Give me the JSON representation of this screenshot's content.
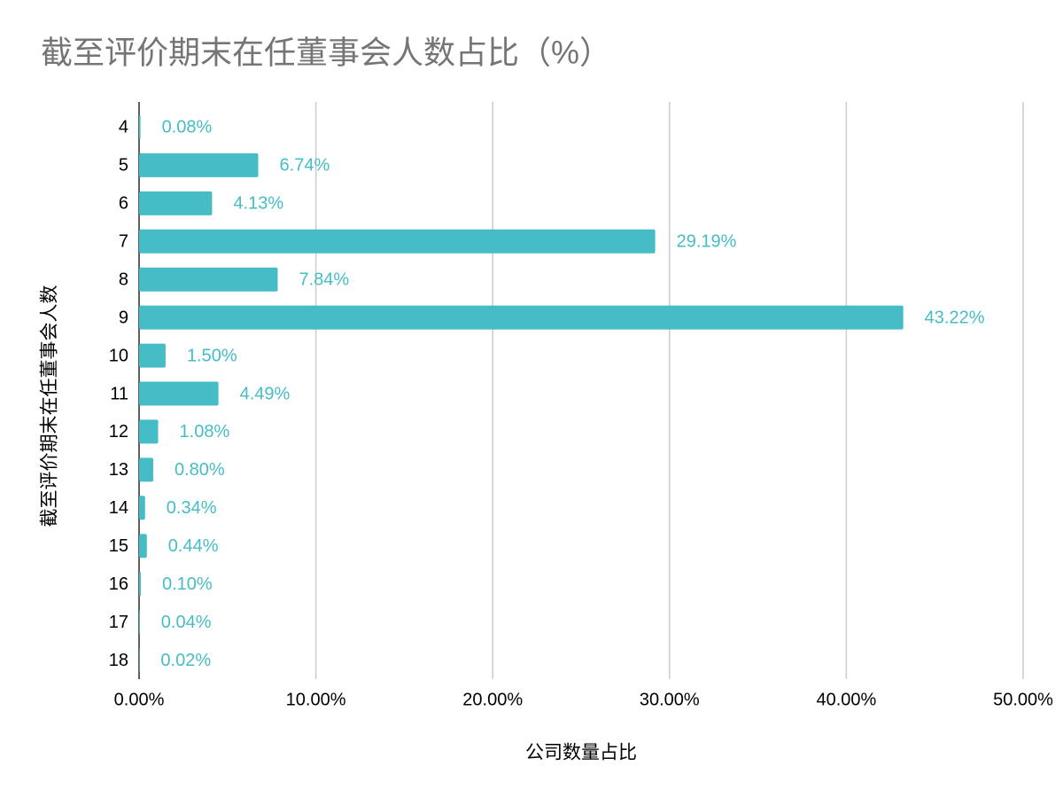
{
  "chart_data": {
    "type": "bar",
    "orientation": "horizontal",
    "title": "截至评价期末在任董事会人数占比（%）",
    "x_label": "公司数量占比",
    "y_label": "截至评价期末在任董事会人数",
    "categories": [
      "4",
      "5",
      "6",
      "7",
      "8",
      "9",
      "10",
      "11",
      "12",
      "13",
      "14",
      "15",
      "16",
      "17",
      "18"
    ],
    "values": [
      0.08,
      6.74,
      4.13,
      29.19,
      7.84,
      43.22,
      1.5,
      4.49,
      1.08,
      0.8,
      0.34,
      0.44,
      0.1,
      0.04,
      0.02
    ],
    "value_labels": [
      "0.08%",
      "6.74%",
      "4.13%",
      "29.19%",
      "7.84%",
      "43.22%",
      "1.50%",
      "4.49%",
      "1.08%",
      "0.80%",
      "0.34%",
      "0.44%",
      "0.10%",
      "0.04%",
      "0.02%"
    ],
    "color": "#46bdc6",
    "xlim": [
      0,
      50
    ],
    "xticks": [
      {
        "value": 0,
        "label": "0.00%"
      },
      {
        "value": 10,
        "label": "10.00%"
      },
      {
        "value": 20,
        "label": "20.00%"
      },
      {
        "value": 30,
        "label": "30.00%"
      },
      {
        "value": 40,
        "label": "40.00%"
      },
      {
        "value": 50,
        "label": "50.00%"
      }
    ],
    "grid": true
  }
}
